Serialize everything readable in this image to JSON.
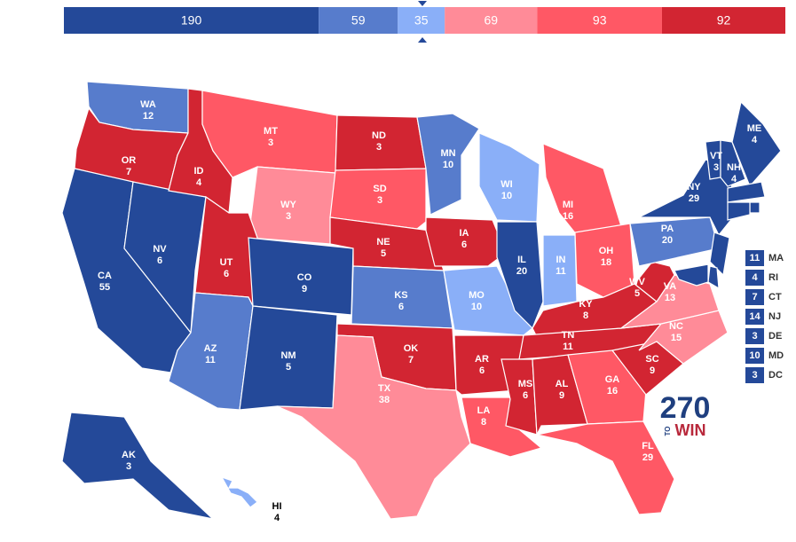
{
  "bar": [
    {
      "value": 190,
      "color": "#244999"
    },
    {
      "value": 59,
      "color": "#577ccc"
    },
    {
      "value": 35,
      "color": "#8aaff8"
    },
    {
      "value": 69,
      "color": "#ff8b98"
    },
    {
      "value": 93,
      "color": "#ff5865"
    },
    {
      "value": 92,
      "color": "#d22532"
    }
  ],
  "states": [
    {
      "abbr": "WA",
      "ev": 12,
      "color": "#577ccc"
    },
    {
      "abbr": "OR",
      "ev": 7,
      "color": "#d22532"
    },
    {
      "abbr": "CA",
      "ev": 55,
      "color": "#244999"
    },
    {
      "abbr": "NV",
      "ev": 6,
      "color": "#244999"
    },
    {
      "abbr": "ID",
      "ev": 4,
      "color": "#d22532"
    },
    {
      "abbr": "MT",
      "ev": 3,
      "color": "#ff5865"
    },
    {
      "abbr": "WY",
      "ev": 3,
      "color": "#ff8b98"
    },
    {
      "abbr": "UT",
      "ev": 6,
      "color": "#d22532"
    },
    {
      "abbr": "AZ",
      "ev": 11,
      "color": "#577ccc"
    },
    {
      "abbr": "CO",
      "ev": 9,
      "color": "#244999"
    },
    {
      "abbr": "NM",
      "ev": 5,
      "color": "#244999"
    },
    {
      "abbr": "ND",
      "ev": 3,
      "color": "#d22532"
    },
    {
      "abbr": "SD",
      "ev": 3,
      "color": "#ff5865"
    },
    {
      "abbr": "NE",
      "ev": 5,
      "color": "#d22532"
    },
    {
      "abbr": "KS",
      "ev": 6,
      "color": "#577ccc"
    },
    {
      "abbr": "OK",
      "ev": 7,
      "color": "#d22532"
    },
    {
      "abbr": "TX",
      "ev": 38,
      "color": "#ff8b98"
    },
    {
      "abbr": "MN",
      "ev": 10,
      "color": "#577ccc"
    },
    {
      "abbr": "IA",
      "ev": 6,
      "color": "#d22532"
    },
    {
      "abbr": "MO",
      "ev": 10,
      "color": "#8aaff8"
    },
    {
      "abbr": "AR",
      "ev": 6,
      "color": "#d22532"
    },
    {
      "abbr": "LA",
      "ev": 8,
      "color": "#ff5865"
    },
    {
      "abbr": "WI",
      "ev": 10,
      "color": "#8aaff8"
    },
    {
      "abbr": "IL",
      "ev": 20,
      "color": "#244999"
    },
    {
      "abbr": "MI",
      "ev": 16,
      "color": "#ff5865"
    },
    {
      "abbr": "IN",
      "ev": 11,
      "color": "#8aaff8"
    },
    {
      "abbr": "OH",
      "ev": 18,
      "color": "#ff5865"
    },
    {
      "abbr": "KY",
      "ev": 8,
      "color": "#d22532"
    },
    {
      "abbr": "TN",
      "ev": 11,
      "color": "#d22532"
    },
    {
      "abbr": "MS",
      "ev": 6,
      "color": "#d22532"
    },
    {
      "abbr": "AL",
      "ev": 9,
      "color": "#d22532"
    },
    {
      "abbr": "GA",
      "ev": 16,
      "color": "#ff5865"
    },
    {
      "abbr": "FL",
      "ev": 29,
      "color": "#ff5865"
    },
    {
      "abbr": "SC",
      "ev": 9,
      "color": "#d22532"
    },
    {
      "abbr": "NC",
      "ev": 15,
      "color": "#ff8b98"
    },
    {
      "abbr": "VA",
      "ev": 13,
      "color": "#ff8b98"
    },
    {
      "abbr": "WV",
      "ev": 5,
      "color": "#d22532"
    },
    {
      "abbr": "PA",
      "ev": 20,
      "color": "#577ccc"
    },
    {
      "abbr": "NY",
      "ev": 29,
      "color": "#244999"
    },
    {
      "abbr": "VT",
      "ev": 3,
      "color": "#244999"
    },
    {
      "abbr": "NH",
      "ev": 4,
      "color": "#244999"
    },
    {
      "abbr": "ME",
      "ev": 4,
      "color": "#244999"
    },
    {
      "abbr": "AK",
      "ev": 3,
      "color": "#244999"
    },
    {
      "abbr": "HI",
      "ev": 4,
      "color": "#8aaff8"
    }
  ],
  "small_states": [
    {
      "abbr": "MA",
      "ev": 11,
      "color": "#244999"
    },
    {
      "abbr": "RI",
      "ev": 4,
      "color": "#244999"
    },
    {
      "abbr": "CT",
      "ev": 7,
      "color": "#244999"
    },
    {
      "abbr": "NJ",
      "ev": 14,
      "color": "#244999"
    },
    {
      "abbr": "DE",
      "ev": 3,
      "color": "#244999"
    },
    {
      "abbr": "MD",
      "ev": 10,
      "color": "#244999"
    },
    {
      "abbr": "DC",
      "ev": 3,
      "color": "#244999"
    }
  ],
  "logo": {
    "number": "270",
    "to": "TO",
    "win": "WIN"
  }
}
